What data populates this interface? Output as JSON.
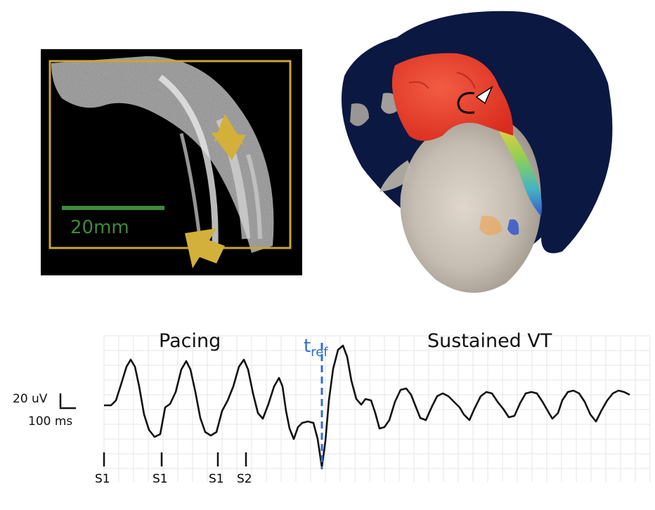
{
  "mri_panel": {
    "scale_bar_label": "20mm",
    "colors": {
      "frame": "#c8a535",
      "scale_bar": "#3e8a3e",
      "arrows": "#d2b03a"
    }
  },
  "heart_panel": {
    "colors": {
      "background_shell": "#0b1842",
      "scar_region": "#ec3a2a",
      "tissue": "#c9c3b8"
    }
  },
  "ecg": {
    "phase_labels": {
      "pacing": "Pacing",
      "sustained": "Sustained VT"
    },
    "tref_label": {
      "base": "t",
      "sub": "ref"
    },
    "scale": {
      "amplitude": "20 uV",
      "time": "100 ms"
    },
    "stimuli": [
      "S1",
      "S1",
      "S1",
      "S2"
    ],
    "colors": {
      "trace": "#111111",
      "tref_line": "#2f6fd0",
      "grid": "#e6e6e6"
    }
  }
}
